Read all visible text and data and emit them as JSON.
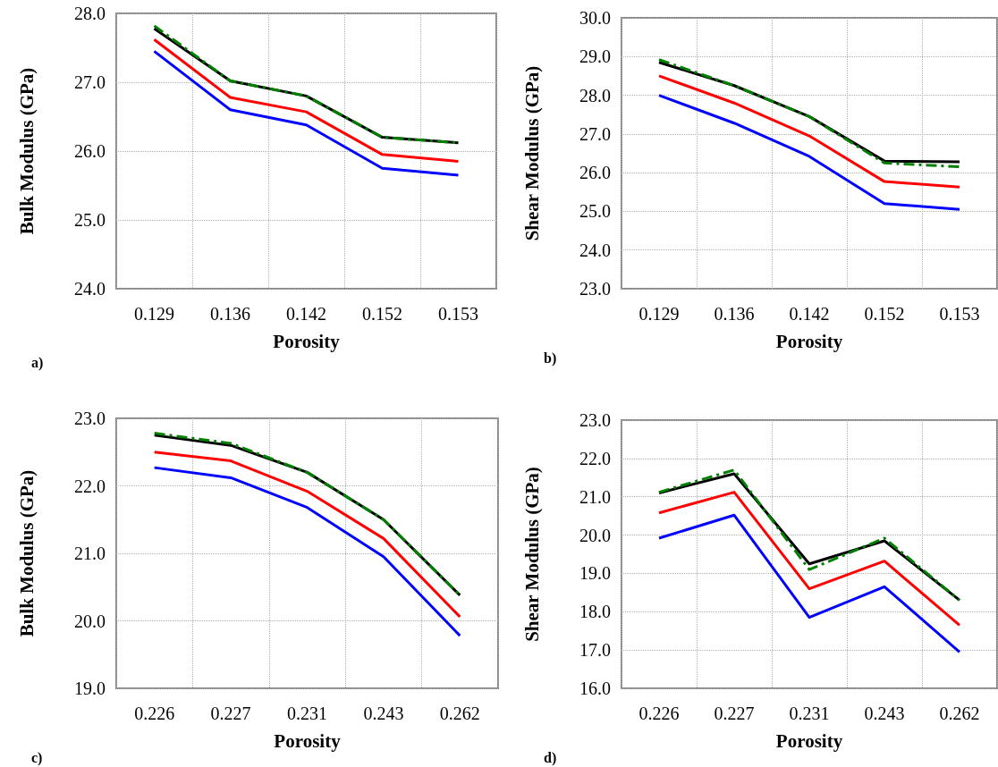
{
  "chart_data": [
    {
      "type": "line",
      "xlabel": "Porosity",
      "ylabel": "Bulk Modulus (GPa)",
      "annotations": [
        "a)"
      ],
      "categories": [
        "0.129",
        "0.136",
        "0.142",
        "0.152",
        "0.153"
      ],
      "ylim": [
        24,
        28
      ],
      "yticks": [
        {
          "value": 24,
          "label": "24.0"
        },
        {
          "value": 25,
          "label": "25.0"
        },
        {
          "value": 26,
          "label": "26.0"
        },
        {
          "value": 27,
          "label": "27.0"
        },
        {
          "value": 28,
          "label": "28.0"
        }
      ],
      "grid": true,
      "marker": "none",
      "series": [
        {
          "color": "#0000ff",
          "values": [
            27.45,
            26.6,
            26.38,
            25.75,
            25.65
          ]
        },
        {
          "color": "#ff0000",
          "values": [
            27.62,
            26.78,
            26.57,
            25.95,
            25.85
          ]
        },
        {
          "color": "#000000",
          "values": [
            27.78,
            27.02,
            26.8,
            26.2,
            26.12
          ]
        },
        {
          "color": "#008000",
          "line_style": "dashed",
          "values": [
            27.82,
            27.02,
            26.8,
            26.2,
            26.12
          ]
        }
      ]
    },
    {
      "type": "line",
      "xlabel": "Porosity",
      "ylabel": "Shear Modulus (GPa)",
      "annotations": [
        "b)"
      ],
      "categories": [
        "0.129",
        "0.136",
        "0.142",
        "0.152",
        "0.153"
      ],
      "ylim": [
        23,
        30
      ],
      "yticks": [
        {
          "value": 23,
          "label": "23.0"
        },
        {
          "value": 24,
          "label": "24.0"
        },
        {
          "value": 25,
          "label": "25.0"
        },
        {
          "value": 26,
          "label": "26.0"
        },
        {
          "value": 27,
          "label": "27.0"
        },
        {
          "value": 28,
          "label": "28.0"
        },
        {
          "value": 29,
          "label": "29.0"
        },
        {
          "value": 30,
          "label": "30.0"
        }
      ],
      "grid": true,
      "marker": "none",
      "series": [
        {
          "color": "#0000ff",
          "values": [
            28.0,
            27.28,
            26.42,
            25.2,
            25.05
          ]
        },
        {
          "color": "#ff0000",
          "values": [
            28.5,
            27.8,
            26.95,
            25.77,
            25.63
          ]
        },
        {
          "color": "#000000",
          "values": [
            28.85,
            28.25,
            27.45,
            26.3,
            26.28
          ]
        },
        {
          "color": "#008000",
          "line_style": "dashed",
          "values": [
            28.92,
            28.25,
            27.45,
            26.25,
            26.15
          ]
        }
      ]
    },
    {
      "type": "line",
      "xlabel": "Porosity",
      "ylabel": "Bulk Modulus (GPa)",
      "annotations": [
        "c)"
      ],
      "categories": [
        "0.226",
        "0.227",
        "0.231",
        "0.243",
        "0.262"
      ],
      "ylim": [
        19,
        23
      ],
      "yticks": [
        {
          "value": 19,
          "label": "19.0"
        },
        {
          "value": 20,
          "label": "20.0"
        },
        {
          "value": 21,
          "label": "21.0"
        },
        {
          "value": 22,
          "label": "22.0"
        },
        {
          "value": 23,
          "label": "23.0"
        }
      ],
      "grid": true,
      "marker": "none",
      "series": [
        {
          "color": "#0000ff",
          "values": [
            22.27,
            22.12,
            21.68,
            20.95,
            19.78
          ]
        },
        {
          "color": "#ff0000",
          "values": [
            22.5,
            22.37,
            21.92,
            21.22,
            20.06
          ]
        },
        {
          "color": "#000000",
          "values": [
            22.75,
            22.6,
            22.2,
            21.5,
            20.38
          ]
        },
        {
          "color": "#008000",
          "line_style": "dashed",
          "values": [
            22.78,
            22.63,
            22.2,
            21.5,
            20.38
          ]
        }
      ]
    },
    {
      "type": "line",
      "xlabel": "Porosity",
      "ylabel": "Shear Modulus (GPa)",
      "annotations": [
        "d)"
      ],
      "categories": [
        "0.226",
        "0.227",
        "0.231",
        "0.243",
        "0.262"
      ],
      "ylim": [
        16,
        23
      ],
      "yticks": [
        {
          "value": 16,
          "label": "16.0"
        },
        {
          "value": 17,
          "label": "17.0"
        },
        {
          "value": 18,
          "label": "18.0"
        },
        {
          "value": 19,
          "label": "19.0"
        },
        {
          "value": 20,
          "label": "20.0"
        },
        {
          "value": 21,
          "label": "21.0"
        },
        {
          "value": 22,
          "label": "22.0"
        },
        {
          "value": 23,
          "label": "23.0"
        }
      ],
      "grid": true,
      "marker": "none",
      "series": [
        {
          "color": "#0000ff",
          "values": [
            19.92,
            20.52,
            17.85,
            18.65,
            16.95
          ]
        },
        {
          "color": "#ff0000",
          "values": [
            20.58,
            21.12,
            18.6,
            19.32,
            17.65
          ]
        },
        {
          "color": "#000000",
          "values": [
            21.1,
            21.6,
            19.25,
            19.85,
            18.3
          ]
        },
        {
          "color": "#008000",
          "line_style": "dashed",
          "values": [
            21.12,
            21.7,
            19.1,
            19.92,
            18.3
          ]
        }
      ]
    }
  ]
}
